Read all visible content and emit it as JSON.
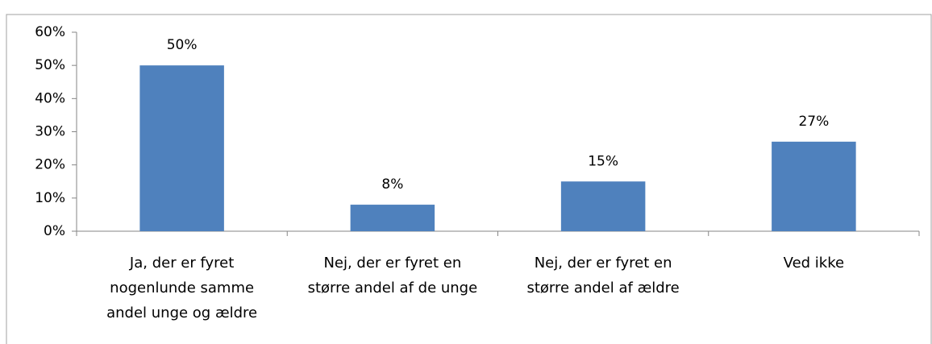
{
  "chart_data": {
    "type": "bar",
    "categories": [
      "Ja, der er fyret\nnogenlunde samme\nandel unge og ældre",
      "Nej, der er fyret en\nstørre andel af de unge",
      "Nej, der er fyret en\nstørre andel af ældre",
      "Ved ikke"
    ],
    "values": [
      50,
      8,
      15,
      27
    ],
    "value_labels": [
      "50%",
      "8%",
      "15%",
      "27%"
    ],
    "color": "#4f81bd",
    "ylim": [
      0,
      60
    ],
    "yticks": [
      {
        "value": 0,
        "label": "0%"
      },
      {
        "value": 10,
        "label": "10%"
      },
      {
        "value": 20,
        "label": "20%"
      },
      {
        "value": 30,
        "label": "30%"
      },
      {
        "value": 40,
        "label": "40%"
      },
      {
        "value": 50,
        "label": "50%"
      },
      {
        "value": 60,
        "label": "60%"
      }
    ],
    "grid": false
  }
}
